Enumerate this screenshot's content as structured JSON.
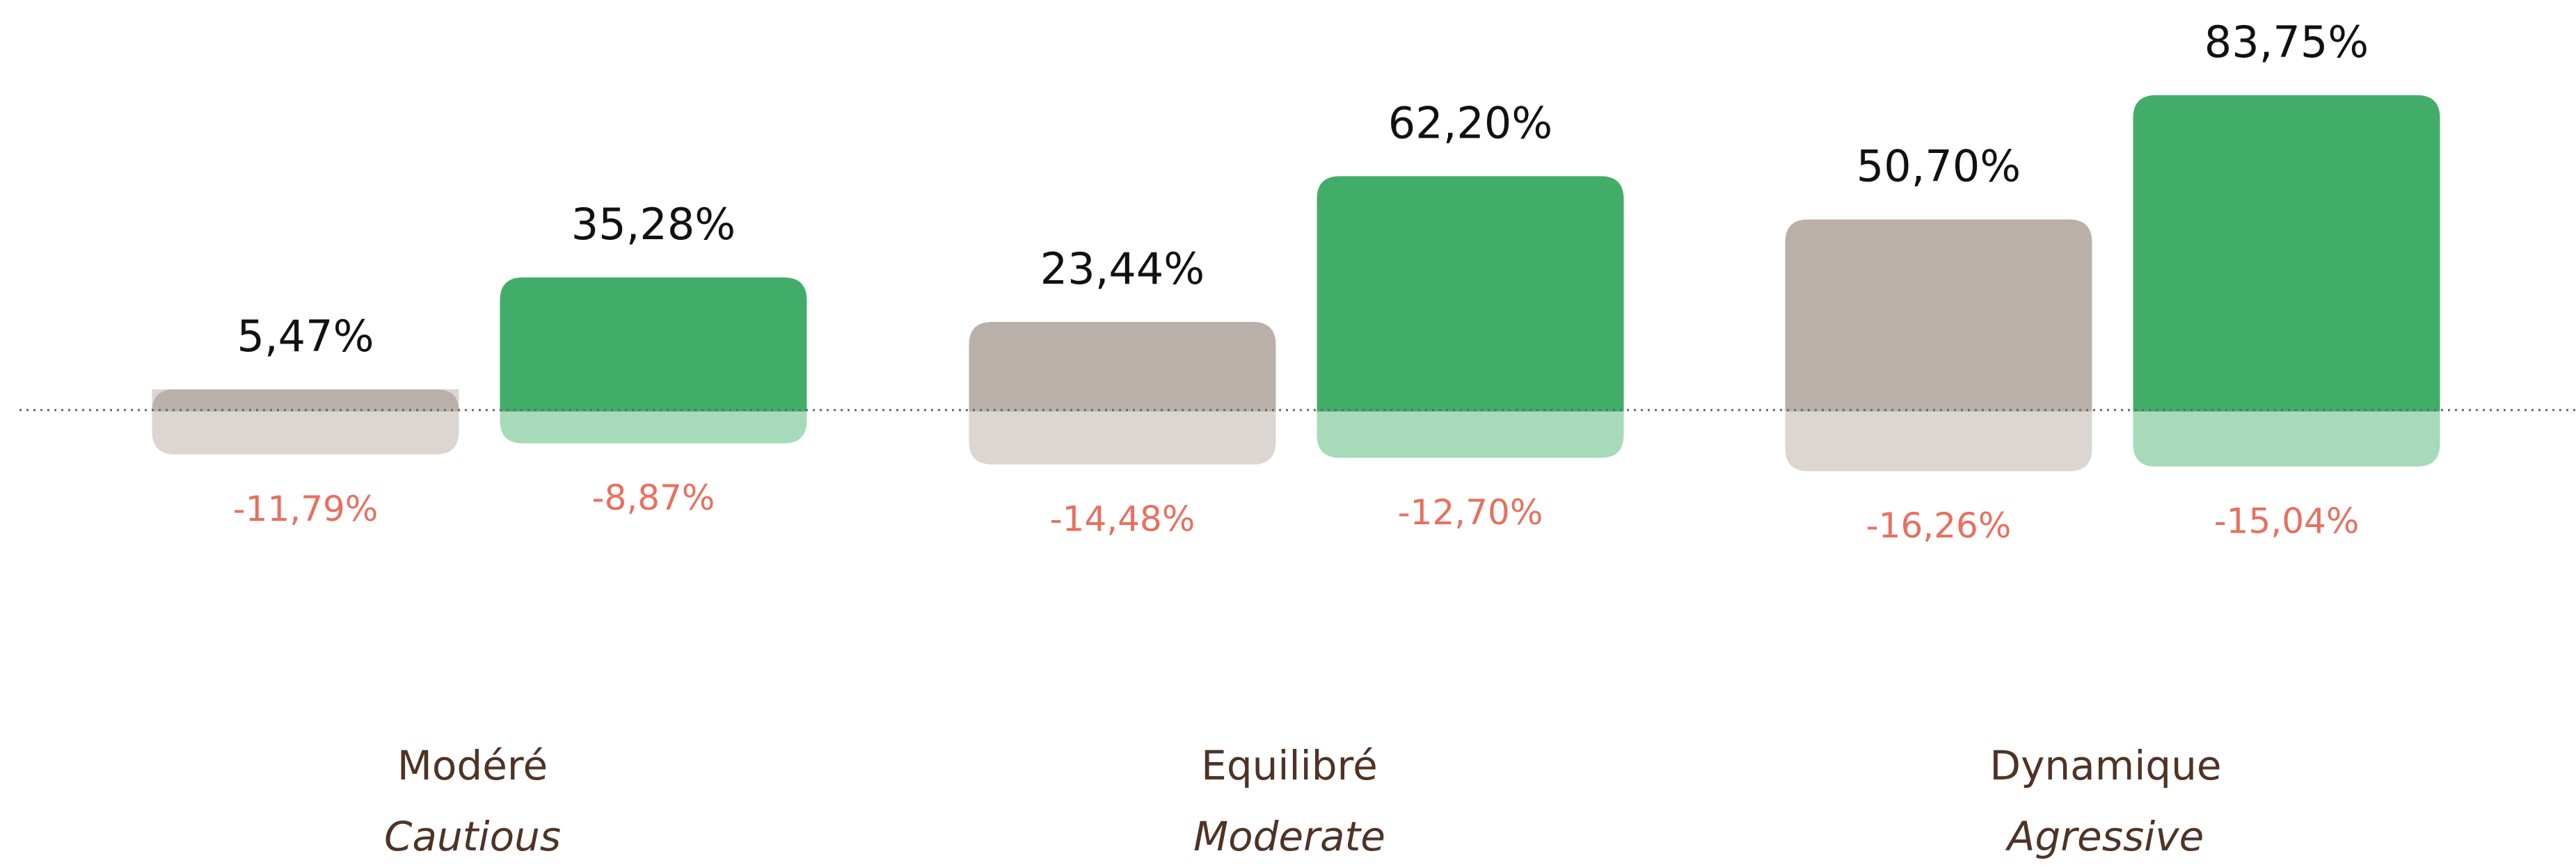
{
  "chart_data": {
    "type": "bar",
    "categories": [
      "Modéré",
      "Equilibré",
      "Dynamique"
    ],
    "category_subtitles": [
      "Cautious",
      "Moderate",
      "Agressive"
    ],
    "ylim": [
      -40,
      100
    ],
    "series": [
      {
        "color": "#bab0aa",
        "low_color": "#dbd6d2",
        "values": [
          5.47,
          23.44,
          50.7
        ],
        "value_labels": [
          "5,47%",
          "23,44%",
          "50,70%"
        ],
        "low_values": [
          -11.79,
          -14.48,
          -16.26
        ],
        "low_value_labels": [
          "-11,79%",
          "-14,48%",
          "-16,26%"
        ]
      },
      {
        "color": "#42ad69",
        "low_color": "#a6dab9",
        "values": [
          35.28,
          62.2,
          83.75
        ],
        "value_labels": [
          "35,28%",
          "62,20%",
          "83,75%"
        ],
        "low_values": [
          -8.87,
          -12.7,
          -15.04
        ],
        "low_value_labels": [
          "-8,87%",
          "-12,70%",
          "-15,04%"
        ]
      }
    ]
  }
}
